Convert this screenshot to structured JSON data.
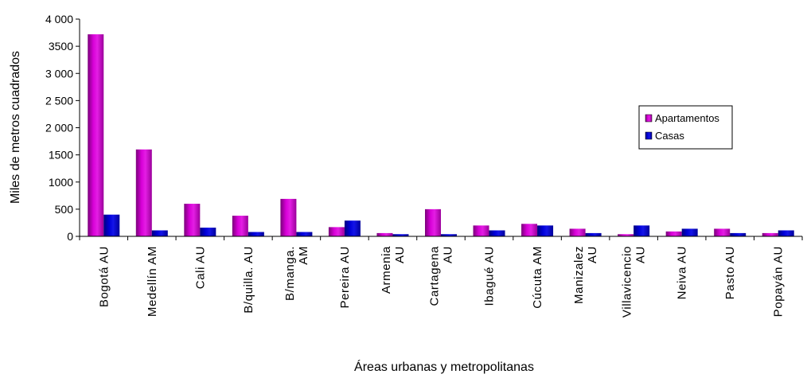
{
  "chart_data": {
    "type": "bar",
    "title": "",
    "xlabel": "Áreas urbanas y metropolitanas",
    "ylabel": "Miles de metros cuadrados",
    "ylim": [
      0,
      4000
    ],
    "yticks": [
      0,
      500,
      1000,
      1500,
      2000,
      2500,
      3000,
      3500,
      4000
    ],
    "ytick_labels": [
      "0",
      "500",
      "1000",
      "1500",
      "2 000",
      "2 500",
      "3 000",
      "3500",
      "4 000"
    ],
    "grid": false,
    "legend_position": "right",
    "categories": [
      [
        "Bogotá  AU"
      ],
      [
        "Medellín  AM"
      ],
      [
        "Cali  AU"
      ],
      [
        "B/quilla.  AU"
      ],
      [
        "B/manga.",
        "AM"
      ],
      [
        "Pereira  AU"
      ],
      [
        "Armenia",
        "AU"
      ],
      [
        "Cartagena",
        "AU"
      ],
      [
        "Ibagué AU"
      ],
      [
        "Cúcuta AM"
      ],
      [
        "Manizalez",
        "AU"
      ],
      [
        "Villavicencio",
        "AU"
      ],
      [
        "Neiva AU"
      ],
      [
        "Pasto AU"
      ],
      [
        "Popayán AU"
      ]
    ],
    "series": [
      {
        "name": "Apartamentos",
        "color": "#cc00cc",
        "values": [
          3720,
          1600,
          600,
          380,
          690,
          170,
          60,
          500,
          200,
          230,
          140,
          40,
          90,
          140,
          60
        ]
      },
      {
        "name": "Casas",
        "color": "#0000cc",
        "values": [
          400,
          110,
          160,
          80,
          80,
          290,
          40,
          40,
          110,
          200,
          60,
          200,
          140,
          60,
          110
        ]
      }
    ]
  }
}
